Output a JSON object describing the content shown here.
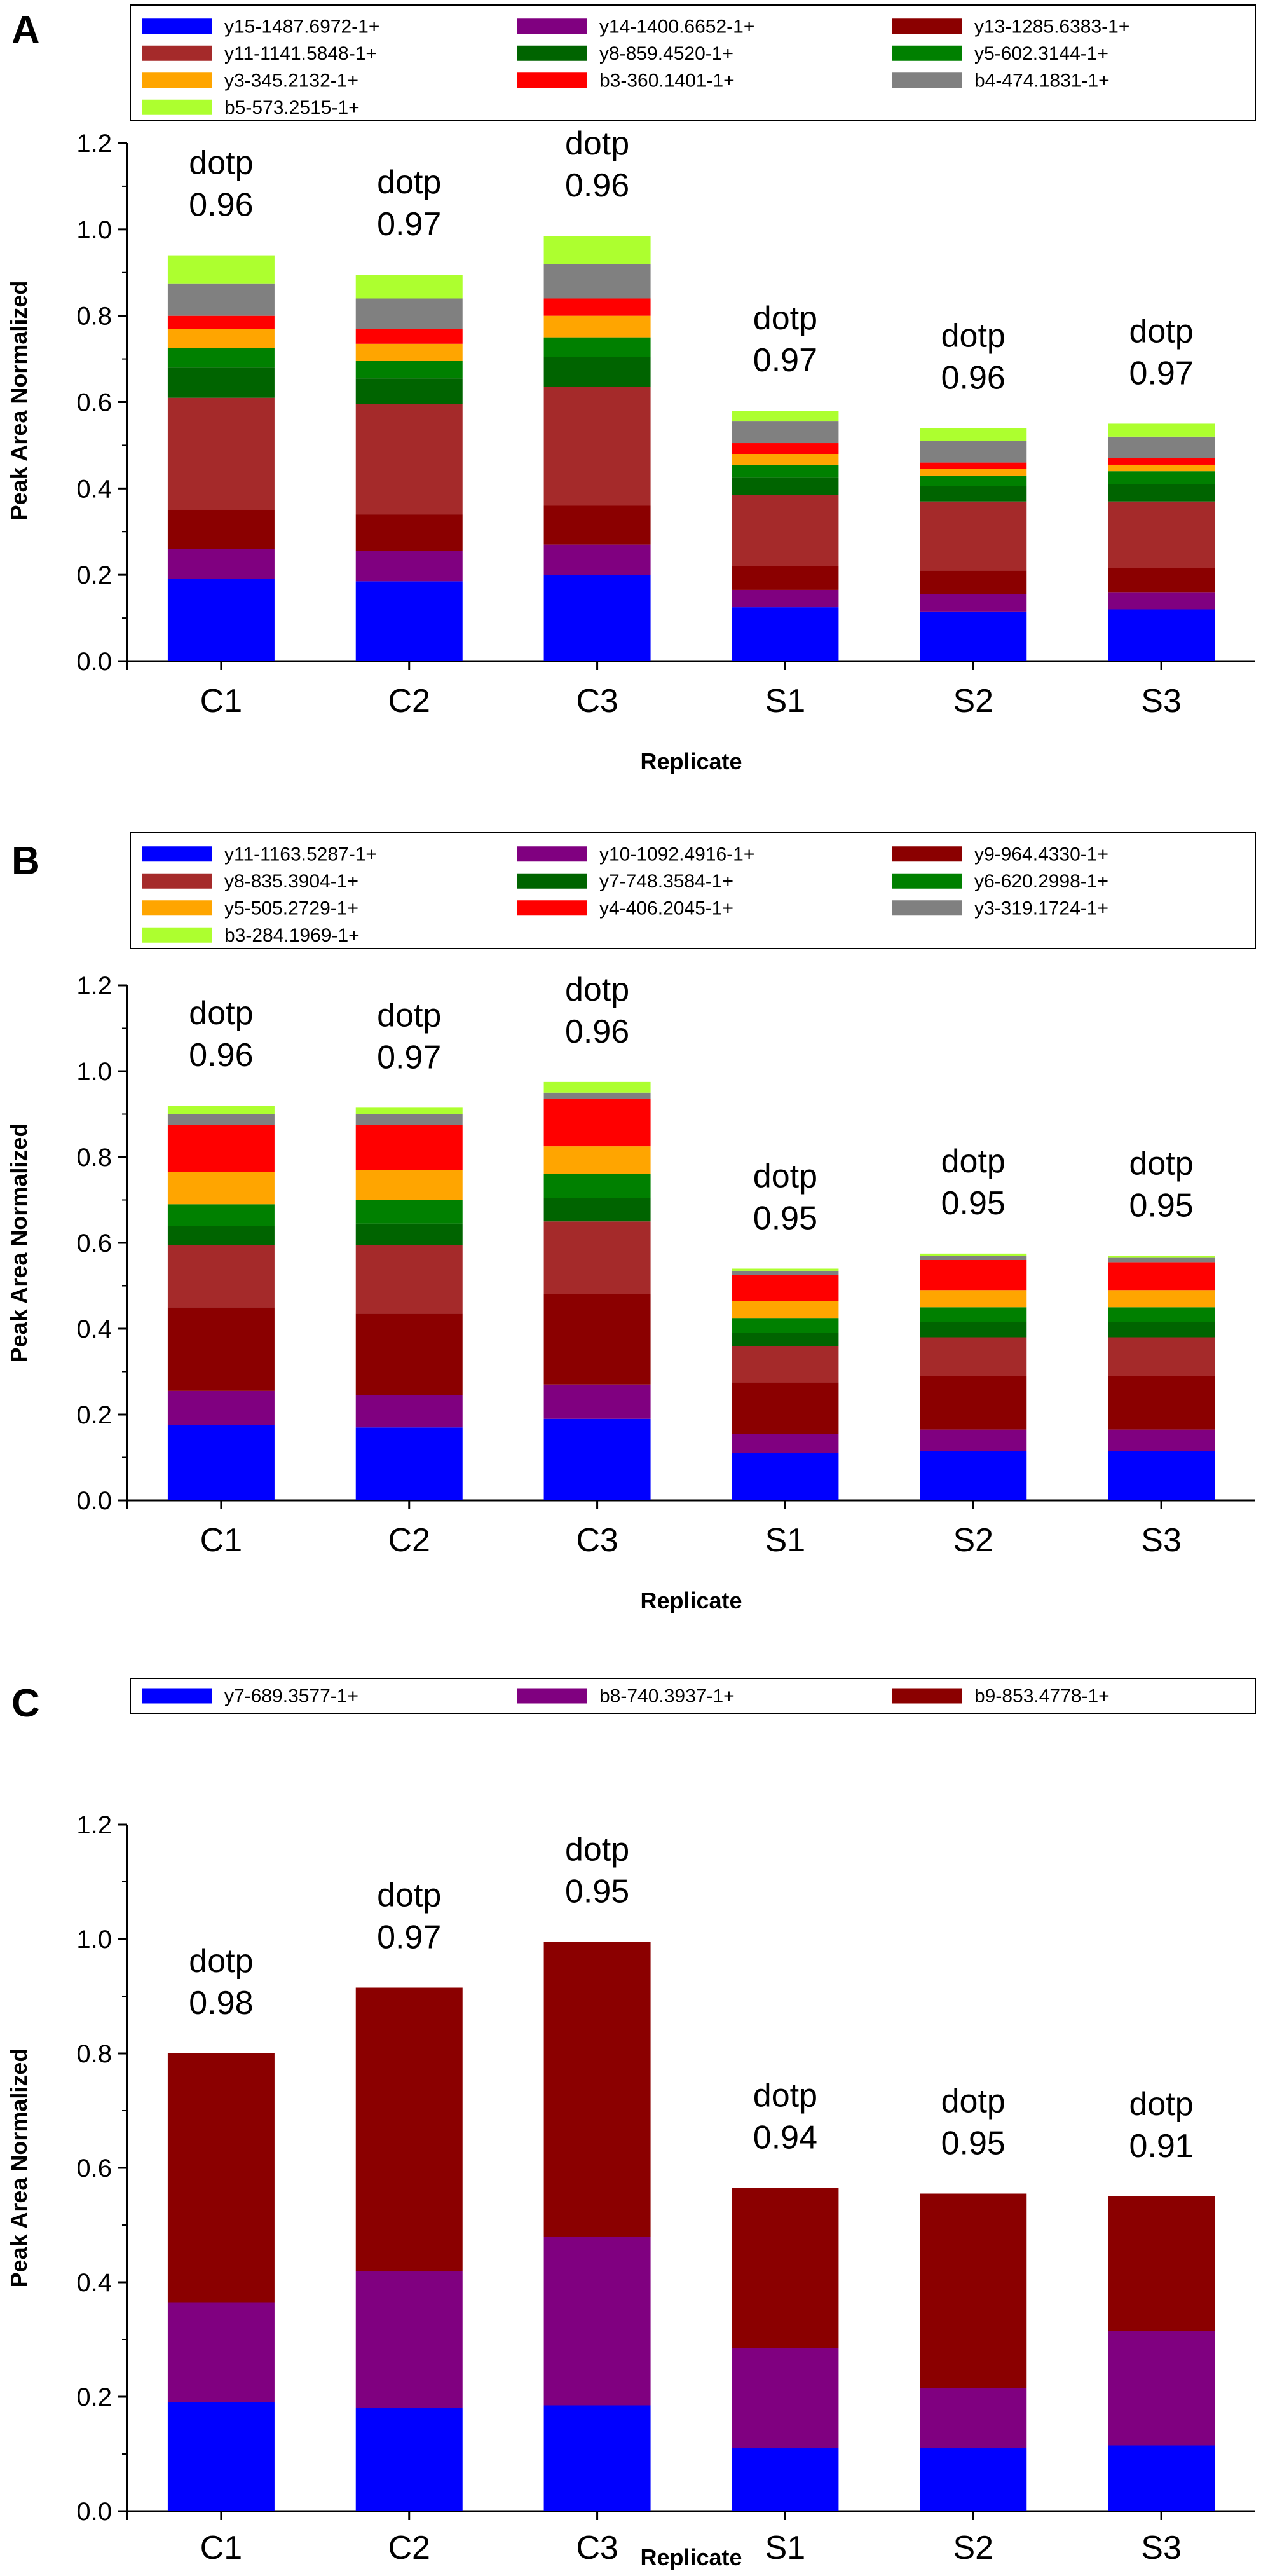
{
  "figure": {
    "panel_letters": [
      "A",
      "B",
      "C"
    ],
    "colors": {
      "blue": "#0000FF",
      "purple": "#800080",
      "darkred": "#8B0000",
      "brown": "#A52A2A",
      "darkgreen": "#006400",
      "green": "#008000",
      "orange": "#FFA500",
      "red": "#FF0000",
      "gray": "#808080",
      "lime": "#ADFF2F"
    }
  },
  "chart_data": [
    {
      "panel": "A",
      "type": "bar",
      "stacked": true,
      "xlabel": "Replicate",
      "ylabel": "Peak Area Normalized",
      "ylim": [
        0,
        1.2
      ],
      "yticks": [
        "0.0",
        "0.2",
        "0.4",
        "0.6",
        "0.8",
        "1.0",
        "1.2"
      ],
      "categories": [
        "C1",
        "C2",
        "C3",
        "S1",
        "S2",
        "S3"
      ],
      "annotation_label": "dotp",
      "annotations": [
        "0.96",
        "0.97",
        "0.96",
        "0.97",
        "0.96",
        "0.97"
      ],
      "series": [
        {
          "name": "y15-1487.6972-1+",
          "color": "#0000FF",
          "values": [
            0.19,
            0.185,
            0.2,
            0.125,
            0.115,
            0.12
          ]
        },
        {
          "name": "y14-1400.6652-1+",
          "color": "#800080",
          "values": [
            0.07,
            0.07,
            0.07,
            0.04,
            0.04,
            0.04
          ]
        },
        {
          "name": "y13-1285.6383-1+",
          "color": "#8B0000",
          "values": [
            0.09,
            0.085,
            0.09,
            0.055,
            0.055,
            0.055
          ]
        },
        {
          "name": "y11-1141.5848-1+",
          "color": "#A52A2A",
          "values": [
            0.26,
            0.255,
            0.275,
            0.165,
            0.16,
            0.155
          ]
        },
        {
          "name": "y8-859.4520-1+",
          "color": "#006400",
          "values": [
            0.07,
            0.06,
            0.07,
            0.04,
            0.035,
            0.04
          ]
        },
        {
          "name": "y5-602.3144-1+",
          "color": "#008000",
          "values": [
            0.045,
            0.04,
            0.045,
            0.03,
            0.025,
            0.03
          ]
        },
        {
          "name": "y3-345.2132-1+",
          "color": "#FFA500",
          "values": [
            0.045,
            0.04,
            0.05,
            0.025,
            0.015,
            0.015
          ]
        },
        {
          "name": "b3-360.1401-1+",
          "color": "#FF0000",
          "values": [
            0.03,
            0.035,
            0.04,
            0.025,
            0.015,
            0.015
          ]
        },
        {
          "name": "b4-474.1831-1+",
          "color": "#808080",
          "values": [
            0.075,
            0.07,
            0.08,
            0.05,
            0.05,
            0.05
          ]
        },
        {
          "name": "b5-573.2515-1+",
          "color": "#ADFF2F",
          "values": [
            0.065,
            0.055,
            0.065,
            0.025,
            0.03,
            0.03
          ]
        }
      ]
    },
    {
      "panel": "B",
      "type": "bar",
      "stacked": true,
      "xlabel": "Replicate",
      "ylabel": "Peak Area Normalized",
      "ylim": [
        0,
        1.2
      ],
      "yticks": [
        "0.0",
        "0.2",
        "0.4",
        "0.6",
        "0.8",
        "1.0",
        "1.2"
      ],
      "categories": [
        "C1",
        "C2",
        "C3",
        "S1",
        "S2",
        "S3"
      ],
      "annotation_label": "dotp",
      "annotations": [
        "0.96",
        "0.97",
        "0.96",
        "0.95",
        "0.95",
        "0.95"
      ],
      "series": [
        {
          "name": "y11-1163.5287-1+",
          "color": "#0000FF",
          "values": [
            0.175,
            0.17,
            0.19,
            0.11,
            0.115,
            0.115
          ]
        },
        {
          "name": "y10-1092.4916-1+",
          "color": "#800080",
          "values": [
            0.08,
            0.075,
            0.08,
            0.045,
            0.05,
            0.05
          ]
        },
        {
          "name": "y9-964.4330-1+",
          "color": "#8B0000",
          "values": [
            0.195,
            0.19,
            0.21,
            0.12,
            0.125,
            0.125
          ]
        },
        {
          "name": "y8-835.3904-1+",
          "color": "#A52A2A",
          "values": [
            0.145,
            0.16,
            0.17,
            0.085,
            0.09,
            0.09
          ]
        },
        {
          "name": "y7-748.3584-1+",
          "color": "#006400",
          "values": [
            0.045,
            0.05,
            0.055,
            0.03,
            0.035,
            0.035
          ]
        },
        {
          "name": "y6-620.2998-1+",
          "color": "#008000",
          "values": [
            0.05,
            0.055,
            0.055,
            0.035,
            0.035,
            0.035
          ]
        },
        {
          "name": "y5-505.2729-1+",
          "color": "#FFA500",
          "values": [
            0.075,
            0.07,
            0.065,
            0.04,
            0.04,
            0.04
          ]
        },
        {
          "name": "y4-406.2045-1+",
          "color": "#FF0000",
          "values": [
            0.11,
            0.105,
            0.11,
            0.06,
            0.07,
            0.065
          ]
        },
        {
          "name": "y3-319.1724-1+",
          "color": "#808080",
          "values": [
            0.025,
            0.025,
            0.015,
            0.01,
            0.01,
            0.01
          ]
        },
        {
          "name": "b3-284.1969-1+",
          "color": "#ADFF2F",
          "values": [
            0.02,
            0.015,
            0.025,
            0.005,
            0.005,
            0.005
          ]
        }
      ]
    },
    {
      "panel": "C",
      "type": "bar",
      "stacked": true,
      "xlabel": "Replicate",
      "ylabel": "Peak Area Normalized",
      "ylim": [
        0,
        1.2
      ],
      "yticks": [
        "0.0",
        "0.2",
        "0.4",
        "0.6",
        "0.8",
        "1.0",
        "1.2"
      ],
      "categories": [
        "C1",
        "C2",
        "C3",
        "S1",
        "S2",
        "S3"
      ],
      "annotation_label": "dotp",
      "annotations": [
        "0.98",
        "0.97",
        "0.95",
        "0.94",
        "0.95",
        "0.91"
      ],
      "series": [
        {
          "name": "y7-689.3577-1+",
          "color": "#0000FF",
          "values": [
            0.19,
            0.18,
            0.185,
            0.11,
            0.11,
            0.115
          ]
        },
        {
          "name": "b8-740.3937-1+",
          "color": "#800080",
          "values": [
            0.175,
            0.24,
            0.295,
            0.175,
            0.105,
            0.2
          ]
        },
        {
          "name": "b9-853.4778-1+",
          "color": "#8B0000",
          "values": [
            0.435,
            0.495,
            0.515,
            0.28,
            0.34,
            0.235
          ]
        }
      ]
    }
  ]
}
